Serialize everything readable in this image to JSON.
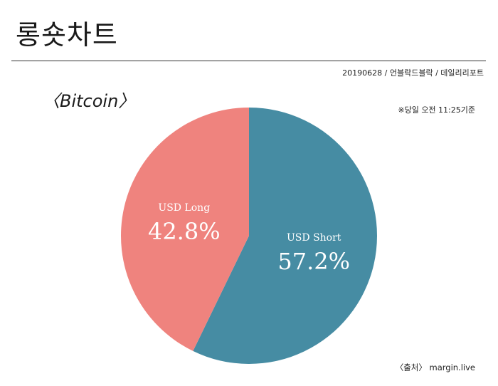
{
  "header": {
    "title": "롱숏차트",
    "source_line": "20190628 / 언블락드블락 / 데일리리포트"
  },
  "subject": "〈Bitcoin〉",
  "note": "※당일 오전 11:25기준",
  "credit": "〈출처〉 margin.live",
  "chart_data": {
    "type": "pie",
    "title": "",
    "slices": [
      {
        "label": "USD Short",
        "value": 57.2,
        "display": "57.2%",
        "color": "#468ca3"
      },
      {
        "label": "USD Long",
        "value": 42.8,
        "display": "42.8%",
        "color": "#ef837e"
      }
    ],
    "start": "12 o'clock",
    "direction": "clockwise",
    "legend": "none"
  }
}
